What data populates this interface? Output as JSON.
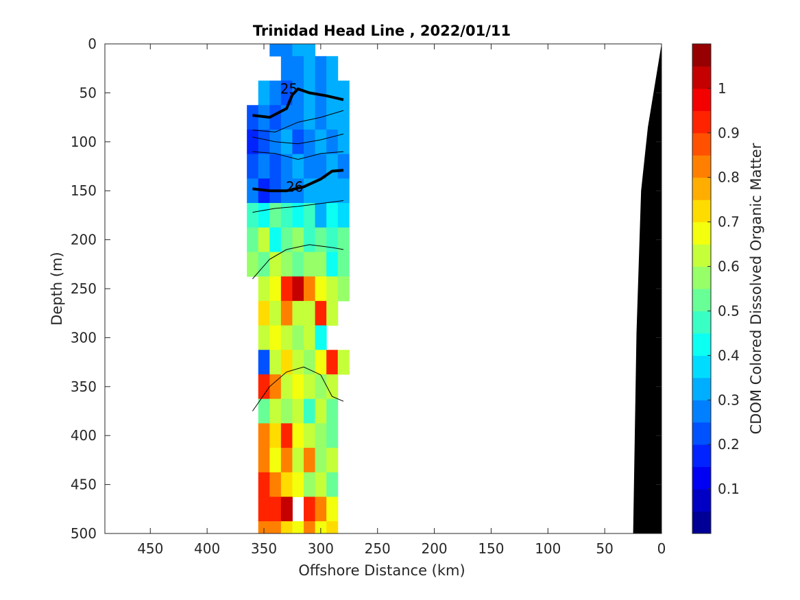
{
  "chart_data": {
    "type": "heatmap",
    "title": "Trinidad Head Line , 2022/01/11",
    "xlabel": "Offshore Distance (km)",
    "ylabel": "Depth (m)",
    "xlim": [
      490,
      0
    ],
    "ylim": [
      0,
      500
    ],
    "x_reversed": true,
    "y_reversed": true,
    "x_ticks": [
      450,
      400,
      350,
      300,
      250,
      200,
      150,
      100,
      50,
      0
    ],
    "y_ticks": [
      0,
      50,
      100,
      150,
      200,
      250,
      300,
      350,
      400,
      450,
      500
    ],
    "grid": false,
    "colorbar": {
      "label": "CDOM Colored Dissolved Organic Matter",
      "range": [
        0,
        1.1
      ],
      "ticks": [
        0.1,
        0.2,
        0.3,
        0.4,
        0.5,
        0.6,
        0.7,
        0.8,
        0.9,
        1
      ],
      "colormap": "jet"
    },
    "cdom_field": {
      "depths": [
        0,
        25,
        50,
        75,
        100,
        125,
        150,
        175,
        200,
        225,
        250,
        275,
        300,
        325,
        350,
        375,
        400,
        425,
        450,
        475,
        500
      ],
      "distances": [
        360,
        350,
        340,
        330,
        320,
        310,
        300,
        290,
        280
      ],
      "values": [
        [
          null,
          null,
          0.28,
          0.25,
          0.3,
          0.3,
          null,
          null,
          null
        ],
        [
          null,
          null,
          null,
          0.28,
          0.25,
          0.3,
          0.28,
          0.3,
          null
        ],
        [
          null,
          0.3,
          0.26,
          0.24,
          0.28,
          0.3,
          0.27,
          0.3,
          0.32
        ],
        [
          0.22,
          0.25,
          0.2,
          0.28,
          0.25,
          0.3,
          0.28,
          0.3,
          0.3
        ],
        [
          0.15,
          0.22,
          0.25,
          0.3,
          0.22,
          0.28,
          0.3,
          0.25,
          0.3
        ],
        [
          0.2,
          0.25,
          0.22,
          0.25,
          0.3,
          0.25,
          0.28,
          0.3,
          0.25
        ],
        [
          0.25,
          0.18,
          0.22,
          0.25,
          0.28,
          0.3,
          0.3,
          0.32,
          0.3
        ],
        [
          0.45,
          0.4,
          0.5,
          0.45,
          0.4,
          0.45,
          0.35,
          0.4,
          0.38
        ],
        [
          0.5,
          0.6,
          0.4,
          0.5,
          0.55,
          0.45,
          0.5,
          0.45,
          0.5
        ],
        [
          0.55,
          0.5,
          0.6,
          0.55,
          0.5,
          0.55,
          0.55,
          0.4,
          0.5
        ],
        [
          null,
          0.6,
          0.7,
          0.9,
          1.0,
          0.8,
          0.7,
          0.65,
          0.55
        ],
        [
          null,
          0.75,
          0.6,
          0.85,
          0.65,
          0.6,
          0.9,
          0.6,
          null
        ],
        [
          null,
          0.65,
          0.7,
          0.6,
          0.55,
          0.65,
          0.4,
          null,
          null
        ],
        [
          null,
          0.2,
          0.6,
          0.75,
          0.65,
          0.55,
          0.7,
          0.9,
          0.6
        ],
        [
          null,
          0.95,
          0.85,
          0.65,
          0.7,
          0.6,
          0.55,
          0.65,
          null
        ],
        [
          null,
          0.5,
          0.6,
          0.55,
          0.6,
          0.45,
          0.6,
          0.5,
          null
        ],
        [
          null,
          0.8,
          0.75,
          0.9,
          0.7,
          0.6,
          0.55,
          0.5,
          null
        ],
        [
          null,
          0.85,
          0.7,
          0.8,
          0.65,
          0.85,
          0.55,
          0.6,
          null
        ],
        [
          null,
          0.9,
          0.85,
          0.75,
          0.7,
          0.55,
          0.65,
          0.5,
          null
        ],
        [
          null,
          0.95,
          0.9,
          1.0,
          null,
          0.9,
          0.85,
          0.7,
          null
        ],
        [
          null,
          0.8,
          0.85,
          0.75,
          0.7,
          0.8,
          0.7,
          0.75,
          null
        ]
      ]
    },
    "density_contours": [
      {
        "label": "25",
        "bold": true,
        "points": [
          [
            360,
            73
          ],
          [
            345,
            75
          ],
          [
            330,
            66
          ],
          [
            325,
            52
          ],
          [
            320,
            46
          ],
          [
            310,
            50
          ],
          [
            295,
            53
          ],
          [
            280,
            57
          ]
        ]
      },
      {
        "label": "26",
        "bold": true,
        "points": [
          [
            360,
            148
          ],
          [
            345,
            150
          ],
          [
            330,
            150
          ],
          [
            315,
            146
          ],
          [
            300,
            138
          ],
          [
            290,
            130
          ],
          [
            280,
            129
          ]
        ]
      },
      {
        "label": "",
        "bold": false,
        "points": [
          [
            360,
            95
          ],
          [
            340,
            100
          ],
          [
            320,
            102
          ],
          [
            300,
            98
          ],
          [
            280,
            92
          ]
        ]
      },
      {
        "label": "",
        "bold": false,
        "points": [
          [
            360,
            110
          ],
          [
            340,
            112
          ],
          [
            320,
            118
          ],
          [
            300,
            112
          ],
          [
            280,
            110
          ]
        ]
      },
      {
        "label": "",
        "bold": false,
        "points": [
          [
            360,
            88
          ],
          [
            340,
            90
          ],
          [
            320,
            80
          ],
          [
            300,
            75
          ],
          [
            280,
            68
          ]
        ]
      },
      {
        "label": "",
        "bold": false,
        "points": [
          [
            360,
            172
          ],
          [
            340,
            168
          ],
          [
            320,
            166
          ],
          [
            300,
            163
          ],
          [
            280,
            160
          ]
        ]
      },
      {
        "label": "",
        "bold": false,
        "points": [
          [
            360,
            240
          ],
          [
            345,
            220
          ],
          [
            330,
            210
          ],
          [
            310,
            205
          ],
          [
            290,
            208
          ],
          [
            280,
            210
          ]
        ]
      },
      {
        "label": "",
        "bold": false,
        "points": [
          [
            360,
            375
          ],
          [
            345,
            350
          ],
          [
            330,
            335
          ],
          [
            315,
            330
          ],
          [
            300,
            338
          ],
          [
            290,
            360
          ],
          [
            280,
            365
          ]
        ]
      }
    ],
    "bathymetry": [
      [
        25,
        500
      ],
      [
        22,
        295
      ],
      [
        18,
        150
      ],
      [
        12,
        85
      ],
      [
        0,
        0
      ]
    ]
  }
}
